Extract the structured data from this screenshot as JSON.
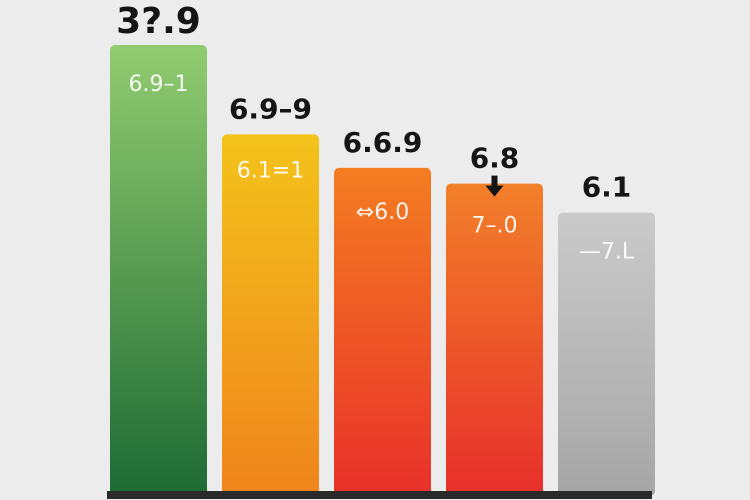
{
  "chart_data": {
    "type": "bar",
    "values": [
      100,
      80,
      72.5,
      69,
      62.5
    ],
    "ylim": [
      0,
      100
    ],
    "top_labels": [
      "3?.9",
      "6.9–9",
      "6.6.9",
      "6.8",
      "6.1"
    ],
    "inner_labels": [
      "6.9–1",
      "6.1=1",
      "⇔6.0",
      "7–.0",
      "—7.L"
    ],
    "colors": [
      [
        "#92cc70",
        "#1d6a34"
      ],
      [
        "#f3c31b",
        "#f0841c"
      ],
      [
        "#f47d22",
        "#e8302a"
      ],
      [
        "#f2802a",
        "#e72f2b"
      ],
      [
        "#cacaca",
        "#a6a6a6"
      ]
    ]
  }
}
